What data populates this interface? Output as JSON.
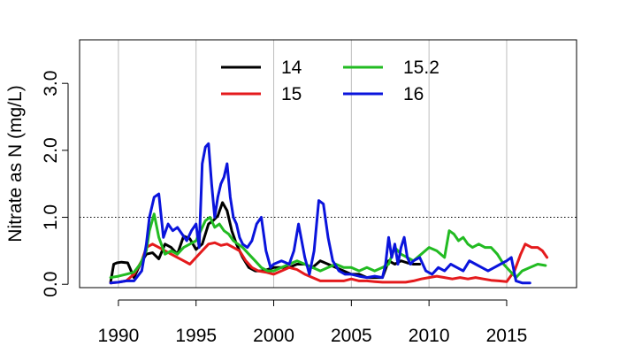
{
  "chart_data": {
    "type": "line",
    "title": "",
    "xlabel": "",
    "ylabel": "Nitrate as N (mg/L)",
    "xlim": [
      1987.5,
      2019.5
    ],
    "ylim": [
      -0.05,
      3.65
    ],
    "x_ticks": [
      1990,
      1995,
      2000,
      2005,
      2010,
      2015
    ],
    "x_tick_labels": [
      "1990",
      "1995",
      "2000",
      "2005",
      "2010",
      "2015"
    ],
    "y_ticks": [
      0,
      1,
      2,
      3
    ],
    "y_tick_labels": [
      "0.0",
      "1.0",
      "2.0",
      "3.0"
    ],
    "vertical_grid": true,
    "reference_line": {
      "y": 1.0,
      "style": "dotted"
    },
    "legend": {
      "placement": "top-center",
      "columns": 2
    },
    "series": [
      {
        "name": "14",
        "color": "#000000",
        "x": [
          1989.5,
          1989.7,
          1989.9,
          1990.2,
          1990.6,
          1991.0,
          1991.4,
          1991.8,
          1992.2,
          1992.6,
          1993.0,
          1993.4,
          1993.8,
          1994.2,
          1994.6,
          1995.0,
          1995.4,
          1995.8,
          1996.1,
          1996.4,
          1996.7,
          1997.0,
          1997.3,
          1997.6,
          1998.0,
          1998.4,
          1998.8,
          1999.2,
          1999.6,
          2000.0,
          2000.5,
          2001.0,
          2001.5,
          2002.0,
          2002.5,
          2003.0,
          2003.5,
          2004.0,
          2004.5,
          2005.0,
          2005.5,
          2006.0,
          2006.5,
          2007.0,
          2007.4,
          2007.8,
          2008.2,
          2008.6,
          2009.0,
          2009.4
        ],
        "values": [
          0.03,
          0.3,
          0.32,
          0.33,
          0.32,
          0.1,
          0.3,
          0.45,
          0.47,
          0.38,
          0.6,
          0.55,
          0.45,
          0.72,
          0.68,
          0.52,
          0.6,
          0.9,
          0.95,
          1.02,
          1.22,
          1.1,
          0.8,
          0.6,
          0.4,
          0.25,
          0.2,
          0.2,
          0.22,
          0.25,
          0.25,
          0.25,
          0.3,
          0.3,
          0.25,
          0.35,
          0.3,
          0.25,
          0.2,
          0.15,
          0.15,
          0.1,
          0.1,
          0.1,
          0.35,
          0.3,
          0.35,
          0.32,
          0.3,
          0.3
        ]
      },
      {
        "name": "15",
        "color": "#e41a1c",
        "x": [
          1989.5,
          1990.0,
          1990.5,
          1991.0,
          1991.5,
          1991.8,
          1992.2,
          1992.6,
          1993.0,
          1993.4,
          1993.8,
          1994.2,
          1994.6,
          1995.0,
          1995.4,
          1995.8,
          1996.2,
          1996.6,
          1997.0,
          1997.4,
          1997.8,
          1998.2,
          1998.6,
          1999.0,
          1999.5,
          2000.0,
          2000.5,
          2001.0,
          2001.5,
          2002.0,
          2002.5,
          2003.0,
          2003.5,
          2004.0,
          2004.5,
          2005.0,
          2005.5,
          2006.0,
          2006.5,
          2007.0,
          2007.5,
          2008.0,
          2008.5,
          2009.0,
          2009.5,
          2010.0,
          2010.5,
          2011.0,
          2011.5,
          2012.0,
          2012.5,
          2013.0,
          2013.5,
          2014.0,
          2014.5,
          2015.0,
          2015.5,
          2015.9,
          2016.2,
          2016.6,
          2017.0,
          2017.3,
          2017.6
        ],
        "values": [
          0.02,
          0.03,
          0.05,
          0.15,
          0.35,
          0.55,
          0.6,
          0.55,
          0.5,
          0.45,
          0.4,
          0.35,
          0.3,
          0.4,
          0.5,
          0.6,
          0.62,
          0.58,
          0.6,
          0.55,
          0.5,
          0.35,
          0.25,
          0.2,
          0.18,
          0.15,
          0.2,
          0.25,
          0.22,
          0.15,
          0.1,
          0.05,
          0.05,
          0.05,
          0.05,
          0.08,
          0.05,
          0.05,
          0.04,
          0.03,
          0.03,
          0.03,
          0.03,
          0.05,
          0.08,
          0.1,
          0.12,
          0.1,
          0.08,
          0.1,
          0.08,
          0.1,
          0.08,
          0.06,
          0.05,
          0.04,
          0.2,
          0.45,
          0.6,
          0.55,
          0.55,
          0.5,
          0.4
        ]
      },
      {
        "name": "15.2",
        "color": "#22bb22",
        "x": [
          1989.5,
          1990.0,
          1990.5,
          1991.0,
          1991.4,
          1991.8,
          1992.0,
          1992.3,
          1992.6,
          1993.0,
          1993.4,
          1993.8,
          1994.2,
          1994.6,
          1995.0,
          1995.3,
          1995.6,
          1995.9,
          1996.2,
          1996.5,
          1996.8,
          1997.1,
          1997.4,
          1997.7,
          1998.0,
          1998.4,
          1998.8,
          1999.2,
          1999.6,
          2000.0,
          2000.5,
          2001.0,
          2001.5,
          2002.0,
          2002.5,
          2003.0,
          2003.5,
          2004.0,
          2004.5,
          2005.0,
          2005.5,
          2006.0,
          2006.5,
          2007.0,
          2007.4,
          2007.8,
          2008.2,
          2008.6,
          2009.0,
          2009.5,
          2010.0,
          2010.5,
          2011.0,
          2011.3,
          2011.6,
          2011.9,
          2012.2,
          2012.5,
          2012.8,
          2013.2,
          2013.6,
          2014.0,
          2014.4,
          2014.8,
          2015.2,
          2015.6,
          2016.0,
          2016.5,
          2017.0,
          2017.5
        ],
        "values": [
          0.1,
          0.12,
          0.15,
          0.18,
          0.3,
          0.5,
          0.8,
          1.05,
          0.7,
          0.45,
          0.5,
          0.45,
          0.55,
          0.6,
          0.65,
          0.8,
          0.95,
          1.0,
          0.85,
          0.9,
          0.8,
          0.75,
          0.65,
          0.6,
          0.55,
          0.45,
          0.35,
          0.25,
          0.2,
          0.2,
          0.25,
          0.3,
          0.35,
          0.3,
          0.25,
          0.2,
          0.25,
          0.3,
          0.25,
          0.25,
          0.2,
          0.25,
          0.2,
          0.25,
          0.3,
          0.55,
          0.45,
          0.4,
          0.35,
          0.45,
          0.55,
          0.5,
          0.4,
          0.8,
          0.75,
          0.65,
          0.7,
          0.6,
          0.55,
          0.6,
          0.55,
          0.55,
          0.45,
          0.3,
          0.2,
          0.1,
          0.2,
          0.25,
          0.3,
          0.28
        ]
      },
      {
        "name": "16",
        "color": "#0a14dc",
        "x": [
          1989.5,
          1990.0,
          1990.5,
          1991.0,
          1991.5,
          1991.8,
          1992.0,
          1992.3,
          1992.6,
          1992.9,
          1993.2,
          1993.5,
          1993.8,
          1994.1,
          1994.4,
          1994.7,
          1995.0,
          1995.2,
          1995.4,
          1995.6,
          1995.8,
          1996.0,
          1996.2,
          1996.4,
          1996.6,
          1996.8,
          1997.0,
          1997.2,
          1997.4,
          1997.6,
          1997.8,
          1998.0,
          1998.3,
          1998.6,
          1998.9,
          1999.2,
          1999.5,
          1999.8,
          2000.0,
          2000.5,
          2001.0,
          2001.3,
          2001.6,
          2002.0,
          2002.3,
          2002.6,
          2002.9,
          2003.2,
          2003.5,
          2003.8,
          2004.2,
          2004.6,
          2005.0,
          2005.5,
          2006.0,
          2006.5,
          2007.0,
          2007.2,
          2007.4,
          2007.6,
          2007.8,
          2008.0,
          2008.2,
          2008.4,
          2008.6,
          2008.8,
          2009.0,
          2009.4,
          2009.8,
          2010.2,
          2010.6,
          2011.0,
          2011.4,
          2011.8,
          2012.2,
          2012.6,
          2013.0,
          2013.4,
          2013.8,
          2014.2,
          2014.6,
          2015.0,
          2015.3,
          2015.6,
          2016.0,
          2016.5
        ],
        "values": [
          0.02,
          0.03,
          0.05,
          0.05,
          0.2,
          0.6,
          1.0,
          1.3,
          1.35,
          0.7,
          0.9,
          0.8,
          0.85,
          0.75,
          0.65,
          0.8,
          0.9,
          0.55,
          1.8,
          2.05,
          2.1,
          1.5,
          1.0,
          1.3,
          1.5,
          1.6,
          1.8,
          1.3,
          1.0,
          0.9,
          0.7,
          0.6,
          0.55,
          0.65,
          0.9,
          1.0,
          0.5,
          0.25,
          0.3,
          0.35,
          0.3,
          0.5,
          0.9,
          0.4,
          0.15,
          0.5,
          1.25,
          1.2,
          0.7,
          0.35,
          0.2,
          0.15,
          0.15,
          0.12,
          0.1,
          0.12,
          0.1,
          0.3,
          0.7,
          0.4,
          0.6,
          0.3,
          0.55,
          0.7,
          0.4,
          0.3,
          0.35,
          0.4,
          0.2,
          0.15,
          0.25,
          0.2,
          0.3,
          0.25,
          0.2,
          0.35,
          0.3,
          0.25,
          0.2,
          0.25,
          0.3,
          0.35,
          0.4,
          0.05,
          0.02,
          0.02
        ]
      }
    ]
  }
}
